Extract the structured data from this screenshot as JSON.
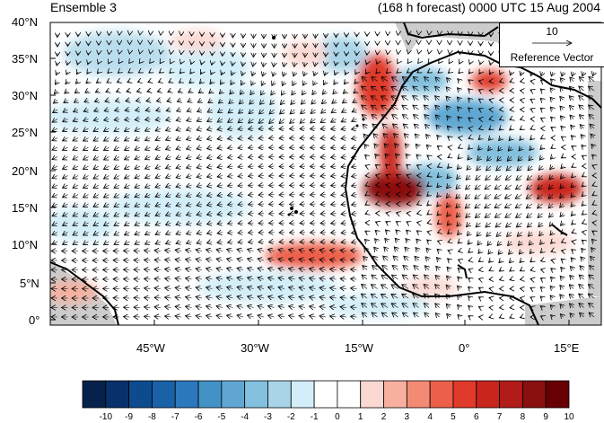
{
  "header": {
    "left_title": "Ensemble 3",
    "right_title": "(168 h forecast) 0000 UTC 15 Aug 2004"
  },
  "map": {
    "lat_labels": [
      "40°N",
      "35°N",
      "30°N",
      "25°N",
      "20°N",
      "15°N",
      "10°N",
      "5°N",
      "0°"
    ],
    "lon_labels": [
      "45°W",
      "30°W",
      "15°W",
      "0°",
      "15°E"
    ],
    "reference_vector": {
      "value": "10",
      "label": "Reference Vector"
    },
    "land_color": "#cccccc",
    "coastline_color": "#000000"
  },
  "colorbar": {
    "labels": [
      "-10",
      "-9",
      "-8",
      "-7",
      "-6",
      "-5",
      "-4",
      "-3",
      "-2",
      "-1",
      "0",
      "1",
      "2",
      "3",
      "4",
      "5",
      "6",
      "7",
      "8",
      "9",
      "10"
    ],
    "colors": [
      "#06214b",
      "#08306b",
      "#0d4b8f",
      "#1a62a8",
      "#2b78bd",
      "#4392c6",
      "#5fa7d2",
      "#83c0dd",
      "#a9d4e8",
      "#d3eef8",
      "#ffffff",
      "#ffffff",
      "#fbd9d3",
      "#f7b09f",
      "#f38a74",
      "#ec5f49",
      "#e03a2c",
      "#c8251d",
      "#b11b18",
      "#8a0f10",
      "#680003"
    ]
  }
}
